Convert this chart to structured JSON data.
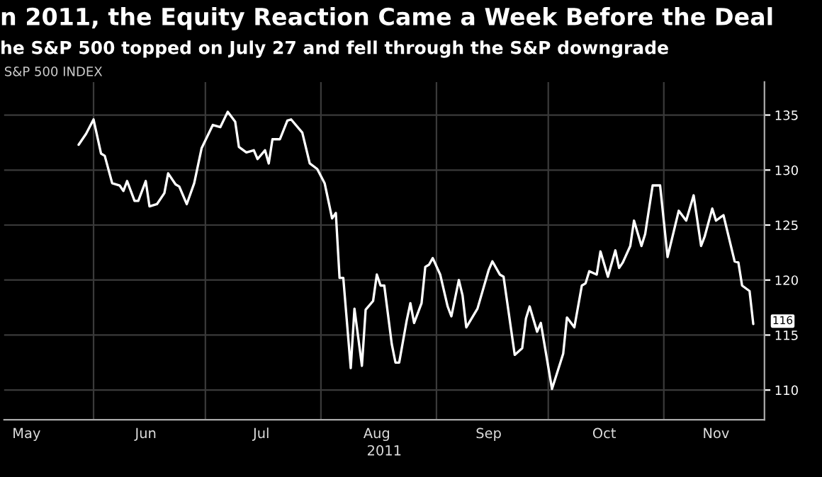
{
  "chart_data": {
    "type": "line",
    "title": "n 2011, the Equity Reaction Came a Week Before the Deal",
    "subtitle": "he S&P 500 topped on July 27 and fell through the S&P downgrade",
    "ylabel": "S&P 500 INDEX",
    "xlabel": "2011",
    "x": [
      "2011-05-28",
      "2011-05-30",
      "2011-06-01",
      "2011-06-03",
      "2011-06-04",
      "2011-06-06",
      "2011-06-08",
      "2011-06-09",
      "2011-06-10",
      "2011-06-12",
      "2011-06-13",
      "2011-06-15",
      "2011-06-16",
      "2011-06-18",
      "2011-06-20",
      "2011-06-21",
      "2011-06-23",
      "2011-06-24",
      "2011-06-26",
      "2011-06-28",
      "2011-06-30",
      "2011-07-03",
      "2011-07-05",
      "2011-07-07",
      "2011-07-09",
      "2011-07-10",
      "2011-07-12",
      "2011-07-14",
      "2011-07-15",
      "2011-07-17",
      "2011-07-18",
      "2011-07-19",
      "2011-07-21",
      "2011-07-23",
      "2011-07-24",
      "2011-07-27",
      "2011-07-29",
      "2011-07-31",
      "2011-08-02",
      "2011-08-04",
      "2011-08-05",
      "2011-08-06",
      "2011-08-07",
      "2011-08-09",
      "2011-08-10",
      "2011-08-12",
      "2011-08-13",
      "2011-08-15",
      "2011-08-16",
      "2011-08-17",
      "2011-08-18",
      "2011-08-20",
      "2011-08-21",
      "2011-08-22",
      "2011-08-24",
      "2011-08-25",
      "2011-08-26",
      "2011-08-28",
      "2011-08-29",
      "2011-08-30",
      "2011-08-31",
      "2011-09-02",
      "2011-09-04",
      "2011-09-05",
      "2011-09-07",
      "2011-09-08",
      "2011-09-09",
      "2011-09-12",
      "2011-09-15",
      "2011-09-16",
      "2011-09-18",
      "2011-09-19",
      "2011-09-22",
      "2011-09-24",
      "2011-09-25",
      "2011-09-26",
      "2011-09-28",
      "2011-09-29",
      "2011-10-02",
      "2011-10-05",
      "2011-10-06",
      "2011-10-08",
      "2011-10-10",
      "2011-10-11",
      "2011-10-12",
      "2011-10-14",
      "2011-10-15",
      "2011-10-17",
      "2011-10-19",
      "2011-10-20",
      "2011-10-21",
      "2011-10-23",
      "2011-10-24",
      "2011-10-26",
      "2011-10-27",
      "2011-10-29",
      "2011-10-31",
      "2011-11-02",
      "2011-11-05",
      "2011-11-07",
      "2011-11-09",
      "2011-11-11",
      "2011-11-12",
      "2011-11-14",
      "2011-11-15",
      "2011-11-17",
      "2011-11-20",
      "2011-11-21",
      "2011-11-22",
      "2011-11-24",
      "2011-11-25"
    ],
    "series": [
      {
        "color": "#ffffff",
        "values": [
          132.3,
          133.3,
          134.6,
          131.5,
          131.3,
          128.8,
          128.6,
          128.1,
          129.0,
          127.2,
          127.2,
          129.0,
          126.7,
          126.9,
          127.9,
          129.7,
          128.7,
          128.5,
          126.9,
          128.8,
          132.0,
          134.1,
          133.9,
          135.3,
          134.4,
          132.1,
          131.6,
          131.8,
          131.0,
          131.8,
          130.6,
          132.8,
          132.8,
          134.5,
          134.6,
          133.4,
          130.6,
          130.1,
          128.8,
          125.6,
          126.1,
          120.2,
          120.2,
          112.0,
          117.4,
          112.2,
          117.3,
          118.1,
          120.5,
          119.5,
          119.5,
          114.2,
          112.5,
          112.5,
          116.3,
          117.9,
          116.1,
          117.9,
          121.2,
          121.4,
          122.0,
          120.5,
          117.6,
          116.7,
          120.0,
          118.6,
          115.7,
          117.4,
          120.9,
          121.7,
          120.5,
          120.3,
          113.2,
          113.8,
          116.5,
          117.6,
          115.3,
          116.1,
          110.1,
          113.3,
          116.6,
          115.7,
          119.5,
          119.7,
          120.8,
          120.5,
          122.6,
          120.3,
          122.7,
          121.1,
          121.6,
          123.1,
          125.4,
          123.1,
          124.2,
          128.6,
          128.6,
          122.1,
          126.3,
          125.4,
          127.7,
          123.1,
          124.0,
          126.5,
          125.4,
          125.9,
          121.7,
          121.6,
          119.5,
          119.0,
          116
        ],
        "value_labels": [
          null,
          null,
          null,
          null,
          null,
          null,
          null,
          null,
          null,
          null,
          null,
          null,
          null,
          null,
          null,
          null,
          null,
          null,
          null,
          null,
          null,
          null,
          null,
          null,
          null,
          null,
          null,
          null,
          null,
          null,
          null,
          null,
          null,
          null,
          null,
          null,
          null,
          null,
          null,
          null,
          null,
          null,
          null,
          null,
          null,
          null,
          null,
          null,
          null,
          null,
          null,
          null,
          null,
          null,
          null,
          null,
          null,
          null,
          null,
          null,
          null,
          null,
          null,
          null,
          null,
          null,
          null,
          null,
          null,
          null,
          null,
          null,
          null,
          null,
          null,
          null,
          null,
          null,
          null,
          null,
          null,
          null,
          null,
          null,
          null,
          null,
          null,
          null,
          null,
          null,
          null,
          null,
          null,
          null,
          null,
          null,
          null,
          null,
          null,
          null,
          null,
          null,
          null,
          null,
          null,
          null,
          null,
          null,
          null,
          null,
          "116"
        ]
      }
    ],
    "xlim": [
      "2011-05-08",
      "2011-11-28"
    ],
    "xticks": [
      {
        "value": "2011-05-14",
        "label": "May"
      },
      {
        "value": "2011-06-01",
        "label": null
      },
      {
        "value": "2011-06-15",
        "label": "Jun"
      },
      {
        "value": "2011-07-01",
        "label": null
      },
      {
        "value": "2011-07-16",
        "label": "Jul"
      },
      {
        "value": "2011-08-01",
        "label": null
      },
      {
        "value": "2011-08-16",
        "label": "Aug"
      },
      {
        "value": "2011-09-01",
        "label": null
      },
      {
        "value": "2011-09-15",
        "label": "Sep"
      },
      {
        "value": "2011-10-01",
        "label": null
      },
      {
        "value": "2011-10-16",
        "label": "Oct"
      },
      {
        "value": "2011-11-01",
        "label": null
      },
      {
        "value": "2011-11-15",
        "label": "Nov"
      }
    ],
    "ylim": [
      107.3,
      138
    ],
    "yticks": [
      110,
      115,
      120,
      125,
      130,
      135
    ],
    "grid": true,
    "line_style": "solid",
    "marker": "none"
  }
}
